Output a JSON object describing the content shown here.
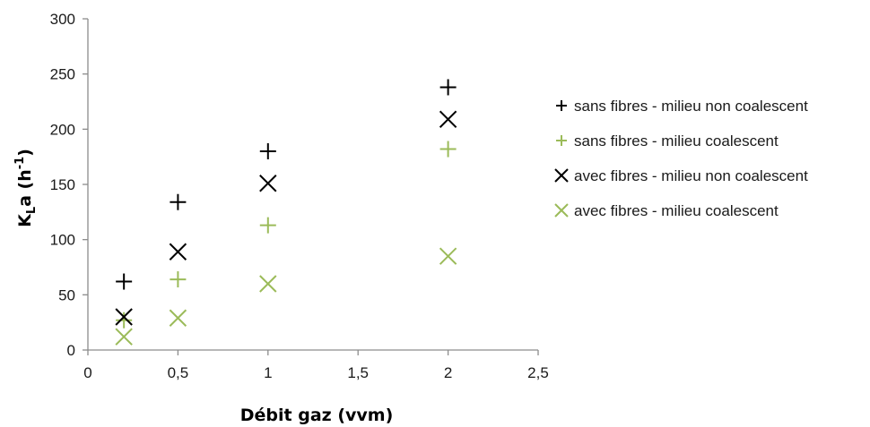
{
  "chart_data": {
    "type": "scatter",
    "xlabel": "Débit gaz (vvm)",
    "ylabel": {
      "main": "K",
      "sub": "L",
      "rest": "a (h",
      "sup": "-1",
      "close": ")"
    },
    "xlim": [
      0,
      2.5
    ],
    "ylim": [
      0,
      300
    ],
    "xticks": [
      "0",
      "0,5",
      "1",
      "1,5",
      "2",
      "2,5"
    ],
    "xtick_values": [
      0,
      0.5,
      1,
      1.5,
      2,
      2.5
    ],
    "yticks": [
      "0",
      "50",
      "100",
      "150",
      "200",
      "250",
      "300"
    ],
    "ytick_values": [
      0,
      50,
      100,
      150,
      200,
      250,
      300
    ],
    "grid": false,
    "legend_position": "right",
    "series": [
      {
        "name": "sans fibres - milieu non coalescent",
        "marker": "plus",
        "color": "#000000",
        "x": [
          0.2,
          0.5,
          1,
          2
        ],
        "y": [
          62,
          134,
          180,
          238
        ]
      },
      {
        "name": "sans fibres - milieu coalescent",
        "marker": "plus",
        "color": "#9bbb59",
        "x": [
          0.2,
          0.5,
          1,
          2
        ],
        "y": [
          27,
          64,
          113,
          182
        ]
      },
      {
        "name": "avec fibres - milieu non coalescent",
        "marker": "cross",
        "color": "#000000",
        "x": [
          0.2,
          0.5,
          1,
          2
        ],
        "y": [
          30,
          89,
          151,
          209
        ]
      },
      {
        "name": "avec fibres - milieu coalescent",
        "marker": "cross",
        "color": "#9bbb59",
        "x": [
          0.2,
          0.5,
          1,
          2
        ],
        "y": [
          12,
          29,
          60,
          85
        ]
      }
    ]
  }
}
